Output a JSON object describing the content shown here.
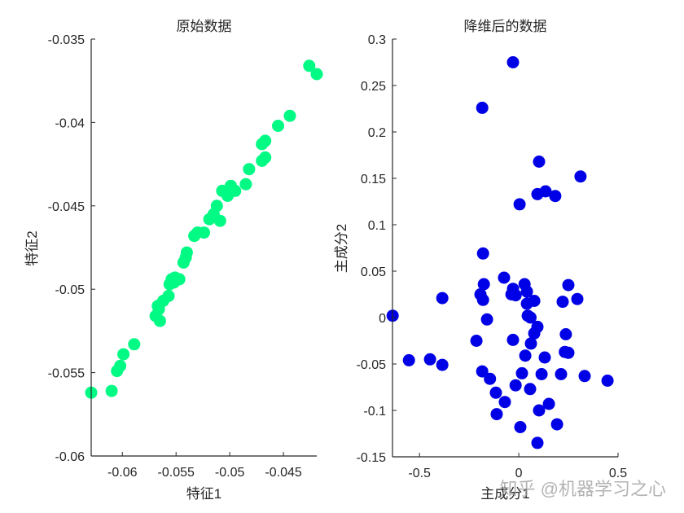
{
  "chart_data": [
    {
      "type": "scatter",
      "title": "原始数据",
      "xlabel": "特征1",
      "ylabel": "特征2",
      "xlim": [
        -0.0629,
        -0.0419
      ],
      "ylim": [
        -0.06,
        -0.035
      ],
      "xticks": [
        -0.06,
        -0.055,
        -0.05,
        -0.045
      ],
      "xtick_labels": [
        "-0.06",
        "-0.055",
        "-0.05",
        "-0.045"
      ],
      "yticks": [
        -0.06,
        -0.055,
        -0.05,
        -0.045,
        -0.04,
        -0.035
      ],
      "ytick_labels": [
        "-0.06",
        "-0.055",
        "-0.05",
        "-0.045",
        "-0.04",
        "-0.035"
      ],
      "grid": false,
      "color": "#00FA84",
      "points": [
        [
          -0.0629,
          -0.0562
        ],
        [
          -0.061,
          -0.0561
        ],
        [
          -0.0605,
          -0.0549
        ],
        [
          -0.0602,
          -0.0546
        ],
        [
          -0.0599,
          -0.0539
        ],
        [
          -0.0589,
          -0.0533
        ],
        [
          -0.0569,
          -0.0516
        ],
        [
          -0.0565,
          -0.0519
        ],
        [
          -0.0567,
          -0.051
        ],
        [
          -0.0566,
          -0.0512
        ],
        [
          -0.0562,
          -0.0507
        ],
        [
          -0.0557,
          -0.0504
        ],
        [
          -0.0556,
          -0.0497
        ],
        [
          -0.0554,
          -0.0494
        ],
        [
          -0.0551,
          -0.0493
        ],
        [
          -0.0552,
          -0.0496
        ],
        [
          -0.0547,
          -0.0494
        ],
        [
          -0.0543,
          -0.0484
        ],
        [
          -0.0541,
          -0.0481
        ],
        [
          -0.054,
          -0.0478
        ],
        [
          -0.0533,
          -0.0468
        ],
        [
          -0.053,
          -0.0466
        ],
        [
          -0.0524,
          -0.0466
        ],
        [
          -0.0519,
          -0.0458
        ],
        [
          -0.0515,
          -0.0455
        ],
        [
          -0.0512,
          -0.045
        ],
        [
          -0.0509,
          -0.0459
        ],
        [
          -0.0507,
          -0.0441
        ],
        [
          -0.0502,
          -0.0444
        ],
        [
          -0.0499,
          -0.0438
        ],
        [
          -0.0495,
          -0.0441
        ],
        [
          -0.0485,
          -0.0437
        ],
        [
          -0.0482,
          -0.0428
        ],
        [
          -0.047,
          -0.0423
        ],
        [
          -0.0467,
          -0.0421
        ],
        [
          -0.047,
          -0.0413
        ],
        [
          -0.0467,
          -0.0411
        ],
        [
          -0.0455,
          -0.0402
        ],
        [
          -0.0444,
          -0.0396
        ],
        [
          -0.0426,
          -0.0366
        ],
        [
          -0.0419,
          -0.0371
        ]
      ]
    },
    {
      "type": "scatter",
      "title": "降维后的数据",
      "xlabel": "主成分1",
      "ylabel": "主成分2",
      "xlim": [
        -0.636,
        0.5
      ],
      "ylim": [
        -0.15,
        0.3
      ],
      "xticks": [
        -0.5,
        0,
        0.5
      ],
      "xtick_labels": [
        "-0.5",
        "0",
        "0.5"
      ],
      "yticks": [
        -0.15,
        -0.1,
        -0.05,
        0,
        0.05,
        0.1,
        0.15,
        0.2,
        0.25,
        0.3
      ],
      "ytick_labels": [
        "-0.15",
        "-0.1",
        "-0.05",
        "0",
        "0.05",
        "0.1",
        "0.15",
        "0.2",
        "0.25",
        "0.3"
      ],
      "grid": false,
      "color": "#0000E6",
      "points": [
        [
          -0.029,
          0.275
        ],
        [
          -0.184,
          0.226
        ],
        [
          0.102,
          0.168
        ],
        [
          0.311,
          0.152
        ],
        [
          0.094,
          0.133
        ],
        [
          0.135,
          0.136
        ],
        [
          0.184,
          0.131
        ],
        [
          0.004,
          0.122
        ],
        [
          -0.18,
          0.069
        ],
        [
          -0.074,
          0.043
        ],
        [
          -0.176,
          0.036
        ],
        [
          -0.029,
          0.031
        ],
        [
          0.029,
          0.036
        ],
        [
          0.041,
          0.028
        ],
        [
          -0.193,
          0.025
        ],
        [
          -0.18,
          0.019
        ],
        [
          -0.037,
          0.025
        ],
        [
          -0.016,
          0.024
        ],
        [
          0.25,
          0.035
        ],
        [
          0.221,
          0.017
        ],
        [
          0.295,
          0.02
        ],
        [
          0.041,
          0.015
        ],
        [
          0.078,
          0.018
        ],
        [
          -0.385,
          0.021
        ],
        [
          -0.635,
          0.002
        ],
        [
          -0.16,
          -0.002
        ],
        [
          0.045,
          0.002
        ],
        [
          0.059,
          0.0
        ],
        [
          0.094,
          -0.01
        ],
        [
          0.078,
          -0.017
        ],
        [
          0.237,
          -0.018
        ],
        [
          -0.213,
          -0.025
        ],
        [
          -0.029,
          -0.024
        ],
        [
          0.061,
          -0.028
        ],
        [
          0.232,
          -0.037
        ],
        [
          0.25,
          -0.038
        ],
        [
          0.033,
          -0.041
        ],
        [
          0.131,
          -0.043
        ],
        [
          -0.553,
          -0.046
        ],
        [
          -0.447,
          -0.045
        ],
        [
          -0.385,
          -0.051
        ],
        [
          -0.184,
          -0.058
        ],
        [
          -0.145,
          -0.066
        ],
        [
          0.016,
          -0.06
        ],
        [
          0.115,
          -0.061
        ],
        [
          0.213,
          -0.061
        ],
        [
          0.332,
          -0.063
        ],
        [
          0.447,
          -0.068
        ],
        [
          -0.016,
          -0.073
        ],
        [
          0.057,
          -0.077
        ],
        [
          -0.115,
          -0.081
        ],
        [
          -0.07,
          -0.091
        ],
        [
          0.152,
          -0.093
        ],
        [
          -0.111,
          -0.104
        ],
        [
          0.102,
          -0.1
        ],
        [
          0.193,
          -0.115
        ],
        [
          0.008,
          -0.118
        ],
        [
          0.094,
          -0.135
        ]
      ]
    }
  ],
  "watermark": "知乎 @机器学习之心"
}
